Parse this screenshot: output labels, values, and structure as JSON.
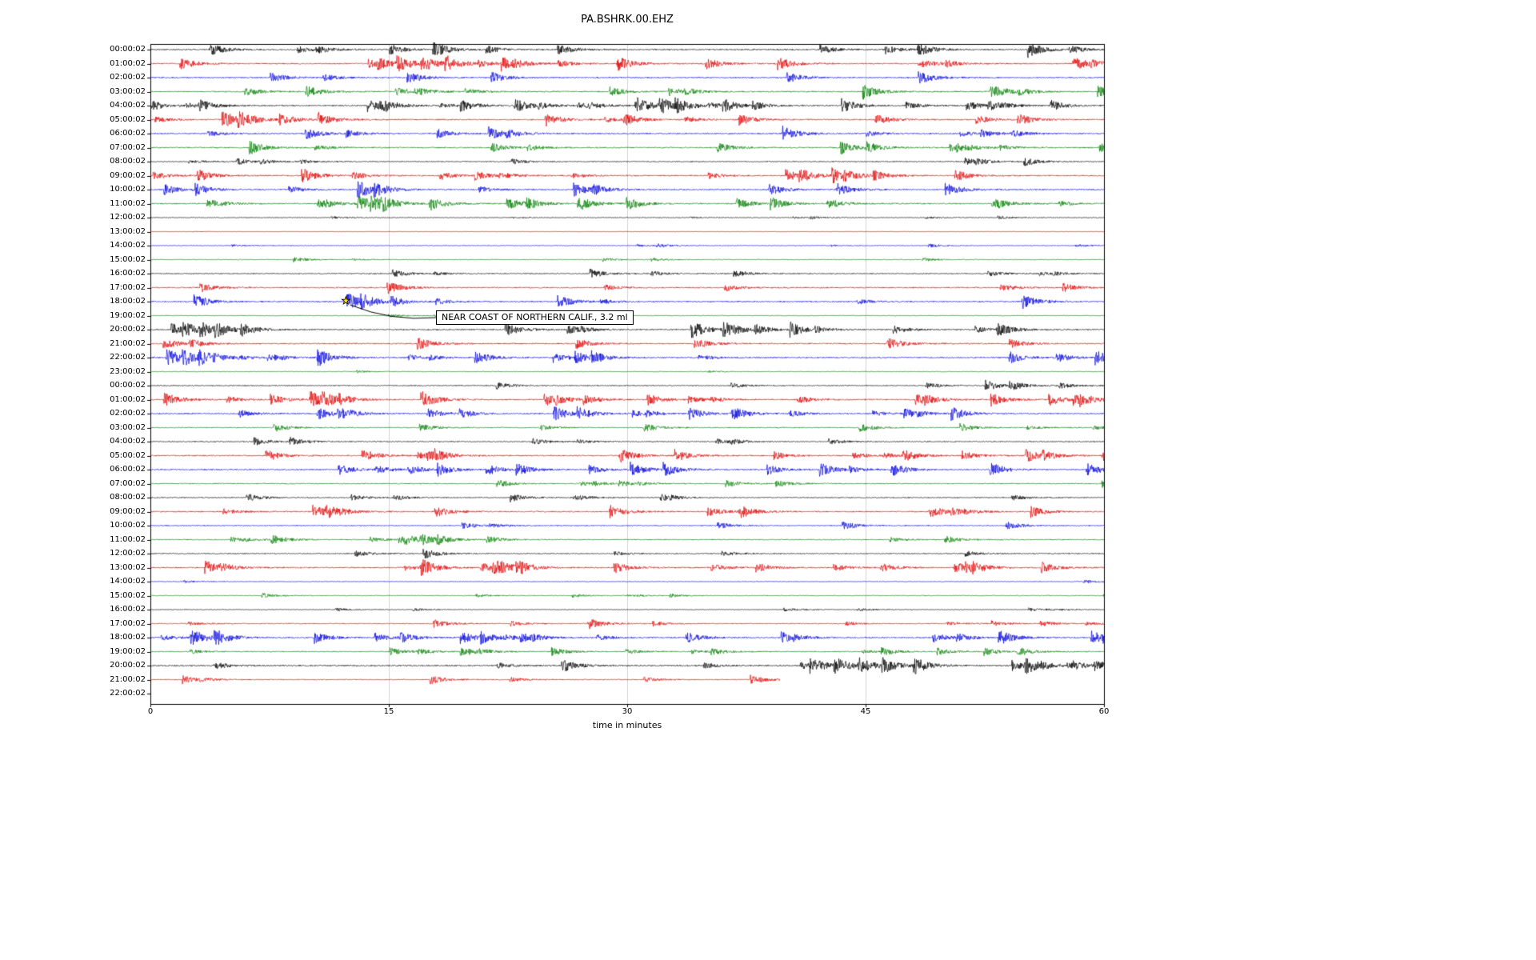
{
  "palette": {
    "black": "#000000",
    "red": "#e00000",
    "blue": "#0000dd",
    "green": "#008000",
    "grid": "#c8c8c8",
    "marker": "#ffe000"
  },
  "chart_data": {
    "type": "line",
    "subtype": "helicorder-seismogram",
    "title": "PA.BSHRK.00.EHZ",
    "xlabel": "time in minutes",
    "x_ticks": [
      "0",
      "15",
      "30",
      "45",
      "60"
    ],
    "x_range": [
      0,
      60
    ],
    "minutes_per_row": 60,
    "grid_minutes": [
      15,
      30,
      45
    ],
    "trace_color_cycle": [
      "black",
      "red",
      "blue",
      "green"
    ],
    "annotations": [
      {
        "text": "NEAR COAST OF NORTHERN CALIF., 3.2 ml",
        "row_index": 18,
        "row_label": "18:00:02",
        "minute": 12.3,
        "marker": "yellow-star",
        "marker_glyph": "★"
      }
    ],
    "rows": [
      {
        "label": "00:00:02",
        "color": "black",
        "activity": "high"
      },
      {
        "label": "01:00:02",
        "color": "red",
        "activity": "high",
        "events": [
          15.5,
          17,
          18.5
        ]
      },
      {
        "label": "02:00:02",
        "color": "blue",
        "activity": "high"
      },
      {
        "label": "03:00:02",
        "color": "green",
        "activity": "high"
      },
      {
        "label": "04:00:02",
        "color": "black",
        "activity": "high",
        "events": [
          30.5,
          32,
          33
        ]
      },
      {
        "label": "05:00:02",
        "color": "red",
        "activity": "high",
        "events": [
          4.5,
          5.5
        ]
      },
      {
        "label": "06:00:02",
        "color": "blue",
        "activity": "high"
      },
      {
        "label": "07:00:02",
        "color": "green",
        "activity": "high"
      },
      {
        "label": "08:00:02",
        "color": "black",
        "activity": "med"
      },
      {
        "label": "09:00:02",
        "color": "red",
        "activity": "high"
      },
      {
        "label": "10:00:02",
        "color": "blue",
        "activity": "high",
        "events": [
          13,
          14
        ]
      },
      {
        "label": "11:00:02",
        "color": "green",
        "activity": "high",
        "events": [
          13,
          13.8,
          14.5
        ]
      },
      {
        "label": "12:00:02",
        "color": "black",
        "activity": "low"
      },
      {
        "label": "13:00:02",
        "color": "red",
        "activity": "vlow"
      },
      {
        "label": "14:00:02",
        "color": "blue",
        "activity": "low"
      },
      {
        "label": "15:00:02",
        "color": "green",
        "activity": "low",
        "events": [
          9
        ]
      },
      {
        "label": "16:00:02",
        "color": "black",
        "activity": "med"
      },
      {
        "label": "17:00:02",
        "color": "red",
        "activity": "high"
      },
      {
        "label": "18:00:02",
        "color": "blue",
        "activity": "high",
        "events": [
          12.3,
          13.2
        ]
      },
      {
        "label": "19:00:02",
        "color": "green",
        "activity": "low"
      },
      {
        "label": "20:00:02",
        "color": "black",
        "activity": "high",
        "events": [
          2,
          3,
          4,
          34,
          36
        ]
      },
      {
        "label": "21:00:02",
        "color": "red",
        "activity": "high"
      },
      {
        "label": "22:00:02",
        "color": "blue",
        "activity": "high",
        "events": [
          1,
          2,
          3,
          10.5
        ]
      },
      {
        "label": "23:00:02",
        "color": "green",
        "activity": "low"
      },
      {
        "label": "00:00:02",
        "color": "black",
        "activity": "med",
        "events": [
          52.5,
          54
        ]
      },
      {
        "label": "01:00:02",
        "color": "red",
        "activity": "high",
        "events": [
          10,
          10.8,
          17
        ]
      },
      {
        "label": "02:00:02",
        "color": "blue",
        "activity": "high"
      },
      {
        "label": "03:00:02",
        "color": "green",
        "activity": "med"
      },
      {
        "label": "04:00:02",
        "color": "black",
        "activity": "med"
      },
      {
        "label": "05:00:02",
        "color": "red",
        "activity": "high"
      },
      {
        "label": "06:00:02",
        "color": "blue",
        "activity": "high"
      },
      {
        "label": "07:00:02",
        "color": "green",
        "activity": "med"
      },
      {
        "label": "08:00:02",
        "color": "black",
        "activity": "med"
      },
      {
        "label": "09:00:02",
        "color": "red",
        "activity": "high"
      },
      {
        "label": "10:00:02",
        "color": "blue",
        "activity": "med"
      },
      {
        "label": "11:00:02",
        "color": "green",
        "activity": "med",
        "events": [
          16,
          17,
          18
        ]
      },
      {
        "label": "12:00:02",
        "color": "black",
        "activity": "med"
      },
      {
        "label": "13:00:02",
        "color": "red",
        "activity": "high",
        "events": [
          17,
          21.5,
          23
        ]
      },
      {
        "label": "14:00:02",
        "color": "blue",
        "activity": "low"
      },
      {
        "label": "15:00:02",
        "color": "green",
        "activity": "low",
        "events": [
          7
        ]
      },
      {
        "label": "16:00:02",
        "color": "black",
        "activity": "low"
      },
      {
        "label": "17:00:02",
        "color": "red",
        "activity": "med",
        "events": [
          27.5
        ]
      },
      {
        "label": "18:00:02",
        "color": "blue",
        "activity": "high",
        "events": [
          2.5,
          4
        ]
      },
      {
        "label": "19:00:02",
        "color": "green",
        "activity": "med"
      },
      {
        "label": "20:00:02",
        "color": "black",
        "activity": "high",
        "events": [
          41.5,
          43,
          44.5,
          46,
          48,
          55
        ]
      },
      {
        "label": "21:00:02",
        "color": "red",
        "activity": "med",
        "end": 0.66
      },
      {
        "label": "22:00:02",
        "color": "blue",
        "activity": "none"
      }
    ]
  }
}
